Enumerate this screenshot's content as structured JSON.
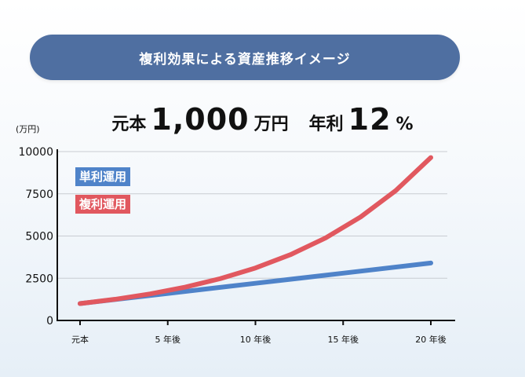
{
  "banner": {
    "title": "複利効果による資産推移イメージ"
  },
  "headline": {
    "principal_label": "元本",
    "principal_value": "1,000",
    "principal_unit": "万円",
    "rate_label": "年利",
    "rate_value": "12",
    "rate_unit": "%"
  },
  "chart_data": {
    "type": "line",
    "title": "",
    "ylabel": "(万円)",
    "xlabel": "",
    "ylim": [
      0,
      10000
    ],
    "xlim": [
      0,
      20
    ],
    "yticks": [
      0,
      2500,
      5000,
      7500,
      10000
    ],
    "xticks": [
      {
        "x": 0,
        "label": "元本"
      },
      {
        "x": 5,
        "label": "5 年後"
      },
      {
        "x": 10,
        "label": "10 年後"
      },
      {
        "x": 15,
        "label": "15 年後"
      },
      {
        "x": 20,
        "label": "20 年後"
      }
    ],
    "grid": true,
    "legend": "top-left",
    "series": [
      {
        "name": "単利運用",
        "color": "#4f83c9",
        "x": [
          0,
          5,
          10,
          15,
          20
        ],
        "values": [
          1000,
          1600,
          2200,
          2800,
          3400
        ]
      },
      {
        "name": "複利運用",
        "color": "#e1585f",
        "x": [
          0,
          2,
          4,
          6,
          8,
          10,
          12,
          14,
          16,
          18,
          20
        ],
        "values": [
          1000,
          1254,
          1574,
          1974,
          2476,
          3106,
          3896,
          4887,
          6130,
          7690,
          9646
        ]
      }
    ]
  }
}
